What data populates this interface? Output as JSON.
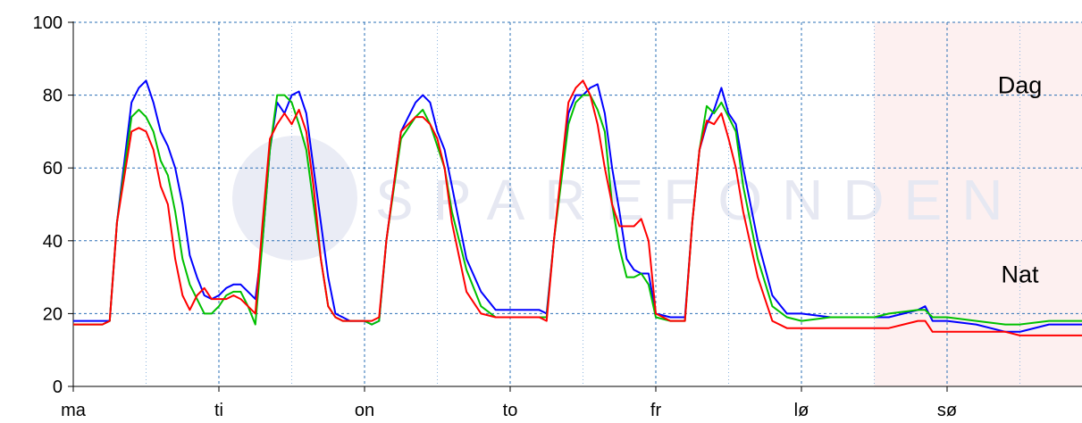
{
  "chart_data": {
    "type": "line",
    "title": "",
    "xlabel": "",
    "ylabel": "",
    "ylim": [
      0,
      100
    ],
    "xlim": [
      0,
      7.5
    ],
    "yticks": [
      0,
      20,
      40,
      60,
      80,
      100
    ],
    "xticks": [
      {
        "label": "ma",
        "x": 0
      },
      {
        "label": "ti",
        "x": 1
      },
      {
        "label": "on",
        "x": 2
      },
      {
        "label": "to",
        "x": 3
      },
      {
        "label": "fr",
        "x": 4
      },
      {
        "label": "lø",
        "x": 5
      },
      {
        "label": "sø",
        "x": 6
      }
    ],
    "weekend_shading": [
      5.5,
      7.5
    ],
    "grid": true,
    "watermark": "SPAREFONDEN",
    "annotations": [
      {
        "text": "Dag",
        "x": 6.5,
        "y": 83
      },
      {
        "text": "Nat",
        "x": 6.5,
        "y": 31
      }
    ],
    "series": [
      {
        "color": "#0000ff",
        "points": [
          [
            0,
            18
          ],
          [
            0.2,
            18
          ],
          [
            0.25,
            18
          ],
          [
            0.3,
            45
          ],
          [
            0.4,
            78
          ],
          [
            0.45,
            82
          ],
          [
            0.5,
            84
          ],
          [
            0.55,
            78
          ],
          [
            0.6,
            70
          ],
          [
            0.65,
            66
          ],
          [
            0.7,
            60
          ],
          [
            0.75,
            50
          ],
          [
            0.8,
            36
          ],
          [
            0.85,
            30
          ],
          [
            0.9,
            25
          ],
          [
            0.95,
            24
          ],
          [
            1.0,
            25
          ],
          [
            1.05,
            27
          ],
          [
            1.1,
            28
          ],
          [
            1.15,
            28
          ],
          [
            1.2,
            26
          ],
          [
            1.25,
            24
          ],
          [
            1.3,
            40
          ],
          [
            1.35,
            65
          ],
          [
            1.4,
            78
          ],
          [
            1.45,
            75
          ],
          [
            1.5,
            80
          ],
          [
            1.55,
            81
          ],
          [
            1.6,
            75
          ],
          [
            1.65,
            60
          ],
          [
            1.7,
            45
          ],
          [
            1.75,
            30
          ],
          [
            1.8,
            20
          ],
          [
            1.85,
            19
          ],
          [
            1.9,
            18
          ],
          [
            1.95,
            18
          ],
          [
            2.0,
            18
          ],
          [
            2.05,
            17
          ],
          [
            2.1,
            18
          ],
          [
            2.15,
            40
          ],
          [
            2.25,
            70
          ],
          [
            2.35,
            78
          ],
          [
            2.4,
            80
          ],
          [
            2.45,
            78
          ],
          [
            2.5,
            70
          ],
          [
            2.55,
            65
          ],
          [
            2.6,
            55
          ],
          [
            2.7,
            35
          ],
          [
            2.8,
            26
          ],
          [
            2.9,
            21
          ],
          [
            3.0,
            21
          ],
          [
            3.1,
            21
          ],
          [
            3.2,
            21
          ],
          [
            3.25,
            20
          ],
          [
            3.3,
            40
          ],
          [
            3.4,
            75
          ],
          [
            3.45,
            80
          ],
          [
            3.5,
            80
          ],
          [
            3.55,
            82
          ],
          [
            3.6,
            83
          ],
          [
            3.65,
            75
          ],
          [
            3.7,
            60
          ],
          [
            3.75,
            48
          ],
          [
            3.8,
            35
          ],
          [
            3.85,
            32
          ],
          [
            3.9,
            31
          ],
          [
            3.95,
            31
          ],
          [
            4.0,
            20
          ],
          [
            4.1,
            19
          ],
          [
            4.15,
            19
          ],
          [
            4.2,
            19
          ],
          [
            4.25,
            45
          ],
          [
            4.3,
            65
          ],
          [
            4.35,
            72
          ],
          [
            4.4,
            76
          ],
          [
            4.45,
            82
          ],
          [
            4.5,
            75
          ],
          [
            4.55,
            72
          ],
          [
            4.6,
            60
          ],
          [
            4.7,
            40
          ],
          [
            4.8,
            25
          ],
          [
            4.9,
            20
          ],
          [
            5.0,
            20
          ],
          [
            5.2,
            19
          ],
          [
            5.4,
            19
          ],
          [
            5.5,
            19
          ],
          [
            5.6,
            19
          ],
          [
            5.8,
            21
          ],
          [
            5.85,
            22
          ],
          [
            5.9,
            18
          ],
          [
            6.0,
            18
          ],
          [
            6.2,
            17
          ],
          [
            6.4,
            15
          ],
          [
            6.5,
            15
          ],
          [
            6.7,
            17
          ],
          [
            6.8,
            17
          ],
          [
            7.0,
            17
          ],
          [
            7.2,
            17
          ],
          [
            7.5,
            17
          ]
        ]
      },
      {
        "color": "#00c000",
        "points": [
          [
            0,
            17
          ],
          [
            0.2,
            17
          ],
          [
            0.25,
            18
          ],
          [
            0.3,
            45
          ],
          [
            0.4,
            74
          ],
          [
            0.45,
            76
          ],
          [
            0.5,
            74
          ],
          [
            0.55,
            70
          ],
          [
            0.6,
            62
          ],
          [
            0.65,
            58
          ],
          [
            0.7,
            48
          ],
          [
            0.75,
            35
          ],
          [
            0.8,
            28
          ],
          [
            0.85,
            24
          ],
          [
            0.9,
            20
          ],
          [
            0.95,
            20
          ],
          [
            1.0,
            22
          ],
          [
            1.05,
            25
          ],
          [
            1.1,
            26
          ],
          [
            1.15,
            26
          ],
          [
            1.2,
            22
          ],
          [
            1.25,
            17
          ],
          [
            1.3,
            40
          ],
          [
            1.35,
            65
          ],
          [
            1.4,
            80
          ],
          [
            1.45,
            80
          ],
          [
            1.5,
            78
          ],
          [
            1.55,
            72
          ],
          [
            1.6,
            65
          ],
          [
            1.65,
            50
          ],
          [
            1.7,
            35
          ],
          [
            1.75,
            22
          ],
          [
            1.8,
            19
          ],
          [
            1.85,
            18
          ],
          [
            1.9,
            18
          ],
          [
            1.95,
            18
          ],
          [
            2.0,
            18
          ],
          [
            2.05,
            17
          ],
          [
            2.1,
            18
          ],
          [
            2.15,
            40
          ],
          [
            2.25,
            68
          ],
          [
            2.35,
            74
          ],
          [
            2.4,
            76
          ],
          [
            2.45,
            72
          ],
          [
            2.5,
            66
          ],
          [
            2.55,
            60
          ],
          [
            2.6,
            48
          ],
          [
            2.7,
            32
          ],
          [
            2.8,
            22
          ],
          [
            2.9,
            19
          ],
          [
            3.0,
            19
          ],
          [
            3.1,
            19
          ],
          [
            3.2,
            19
          ],
          [
            3.25,
            19
          ],
          [
            3.3,
            40
          ],
          [
            3.4,
            72
          ],
          [
            3.45,
            78
          ],
          [
            3.5,
            80
          ],
          [
            3.55,
            80
          ],
          [
            3.6,
            76
          ],
          [
            3.65,
            70
          ],
          [
            3.7,
            50
          ],
          [
            3.75,
            38
          ],
          [
            3.8,
            30
          ],
          [
            3.85,
            30
          ],
          [
            3.9,
            31
          ],
          [
            3.95,
            28
          ],
          [
            4.0,
            19
          ],
          [
            4.1,
            18
          ],
          [
            4.15,
            18
          ],
          [
            4.2,
            18
          ],
          [
            4.25,
            45
          ],
          [
            4.3,
            65
          ],
          [
            4.35,
            77
          ],
          [
            4.4,
            75
          ],
          [
            4.45,
            78
          ],
          [
            4.5,
            74
          ],
          [
            4.55,
            70
          ],
          [
            4.6,
            55
          ],
          [
            4.7,
            35
          ],
          [
            4.8,
            22
          ],
          [
            4.9,
            19
          ],
          [
            5.0,
            18
          ],
          [
            5.2,
            19
          ],
          [
            5.4,
            19
          ],
          [
            5.5,
            19
          ],
          [
            5.6,
            20
          ],
          [
            5.8,
            21
          ],
          [
            5.85,
            21
          ],
          [
            5.9,
            19
          ],
          [
            6.0,
            19
          ],
          [
            6.2,
            18
          ],
          [
            6.4,
            17
          ],
          [
            6.5,
            17
          ],
          [
            6.7,
            18
          ],
          [
            6.8,
            18
          ],
          [
            7.0,
            18
          ],
          [
            7.2,
            18
          ],
          [
            7.5,
            18
          ]
        ]
      },
      {
        "color": "#ff0000",
        "points": [
          [
            0,
            17
          ],
          [
            0.2,
            17
          ],
          [
            0.25,
            18
          ],
          [
            0.3,
            45
          ],
          [
            0.4,
            70
          ],
          [
            0.45,
            71
          ],
          [
            0.5,
            70
          ],
          [
            0.55,
            65
          ],
          [
            0.6,
            55
          ],
          [
            0.65,
            50
          ],
          [
            0.7,
            35
          ],
          [
            0.75,
            25
          ],
          [
            0.8,
            21
          ],
          [
            0.85,
            25
          ],
          [
            0.9,
            27
          ],
          [
            0.95,
            24
          ],
          [
            1.0,
            24
          ],
          [
            1.05,
            24
          ],
          [
            1.1,
            25
          ],
          [
            1.15,
            24
          ],
          [
            1.2,
            22
          ],
          [
            1.25,
            20
          ],
          [
            1.3,
            45
          ],
          [
            1.35,
            68
          ],
          [
            1.4,
            72
          ],
          [
            1.45,
            75
          ],
          [
            1.5,
            72
          ],
          [
            1.55,
            76
          ],
          [
            1.6,
            70
          ],
          [
            1.65,
            55
          ],
          [
            1.7,
            35
          ],
          [
            1.75,
            22
          ],
          [
            1.8,
            19
          ],
          [
            1.85,
            18
          ],
          [
            1.9,
            18
          ],
          [
            1.95,
            18
          ],
          [
            2.0,
            18
          ],
          [
            2.05,
            18
          ],
          [
            2.1,
            19
          ],
          [
            2.15,
            40
          ],
          [
            2.25,
            70
          ],
          [
            2.35,
            74
          ],
          [
            2.4,
            74
          ],
          [
            2.45,
            72
          ],
          [
            2.5,
            68
          ],
          [
            2.55,
            60
          ],
          [
            2.6,
            45
          ],
          [
            2.7,
            26
          ],
          [
            2.8,
            20
          ],
          [
            2.9,
            19
          ],
          [
            3.0,
            19
          ],
          [
            3.1,
            19
          ],
          [
            3.2,
            19
          ],
          [
            3.25,
            18
          ],
          [
            3.3,
            40
          ],
          [
            3.4,
            78
          ],
          [
            3.45,
            82
          ],
          [
            3.5,
            84
          ],
          [
            3.55,
            80
          ],
          [
            3.6,
            72
          ],
          [
            3.65,
            60
          ],
          [
            3.7,
            50
          ],
          [
            3.75,
            44
          ],
          [
            3.8,
            44
          ],
          [
            3.85,
            44
          ],
          [
            3.9,
            46
          ],
          [
            3.95,
            40
          ],
          [
            4.0,
            20
          ],
          [
            4.1,
            18
          ],
          [
            4.15,
            18
          ],
          [
            4.2,
            18
          ],
          [
            4.25,
            45
          ],
          [
            4.3,
            65
          ],
          [
            4.35,
            73
          ],
          [
            4.4,
            72
          ],
          [
            4.45,
            75
          ],
          [
            4.5,
            68
          ],
          [
            4.55,
            60
          ],
          [
            4.6,
            48
          ],
          [
            4.7,
            30
          ],
          [
            4.8,
            18
          ],
          [
            4.9,
            16
          ],
          [
            5.0,
            16
          ],
          [
            5.2,
            16
          ],
          [
            5.4,
            16
          ],
          [
            5.5,
            16
          ],
          [
            5.6,
            16
          ],
          [
            5.8,
            18
          ],
          [
            5.85,
            18
          ],
          [
            5.9,
            15
          ],
          [
            6.0,
            15
          ],
          [
            6.2,
            15
          ],
          [
            6.4,
            15
          ],
          [
            6.5,
            14
          ],
          [
            6.7,
            14
          ],
          [
            6.8,
            14
          ],
          [
            7.0,
            14
          ],
          [
            7.2,
            14
          ],
          [
            7.5,
            16
          ]
        ]
      }
    ]
  }
}
